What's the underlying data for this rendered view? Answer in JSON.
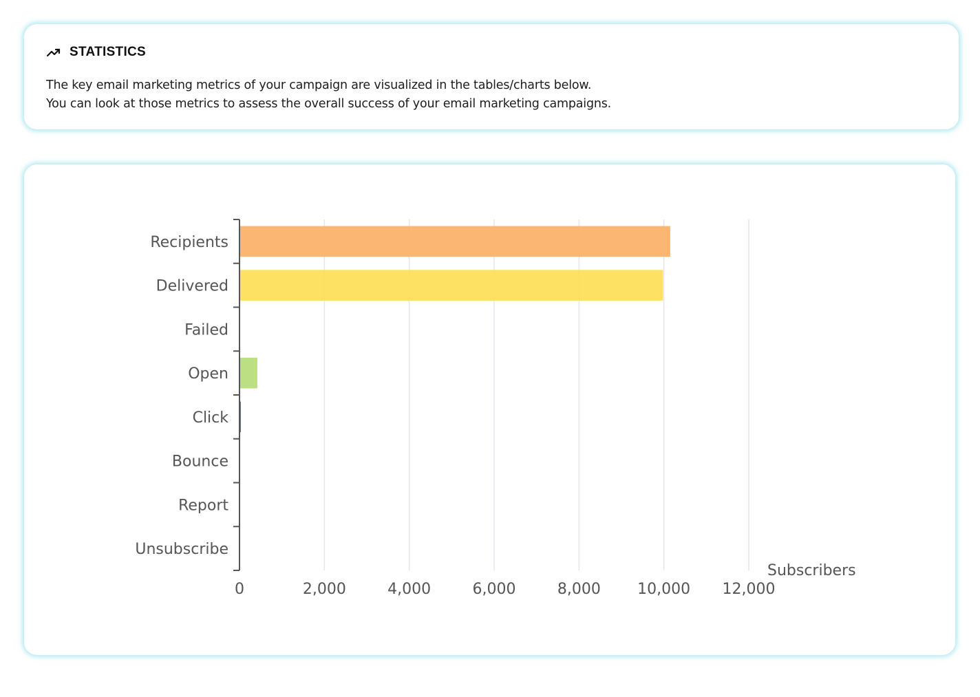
{
  "statistics": {
    "icon": "trending-up-icon",
    "title": "STATISTICS",
    "description_lines": [
      "The key email marketing metrics of your campaign are visualized in the tables/charts below.",
      "You can look at those metrics to assess the overall success of your email marketing campaigns."
    ]
  },
  "chart_data": {
    "type": "bar",
    "orientation": "horizontal",
    "categories": [
      "Recipients",
      "Delivered",
      "Failed",
      "Open",
      "Click",
      "Bounce",
      "Report",
      "Unsubscribe"
    ],
    "values": [
      10150,
      9980,
      0,
      420,
      30,
      0,
      0,
      0
    ],
    "colors": [
      "#fbb26b",
      "#fddf5b",
      "#fddf5b",
      "#b9dd7c",
      "#1f8a82",
      "#cccccc",
      "#cccccc",
      "#cccccc"
    ],
    "xlabel": "Subscribers",
    "xlim": [
      0,
      12000
    ],
    "xticks": [
      0,
      2000,
      4000,
      6000,
      8000,
      10000,
      12000
    ],
    "xtick_labels": [
      "0",
      "2,000",
      "4,000",
      "6,000",
      "8,000",
      "10,000",
      "12,000"
    ],
    "grid": true,
    "legend": "none"
  }
}
